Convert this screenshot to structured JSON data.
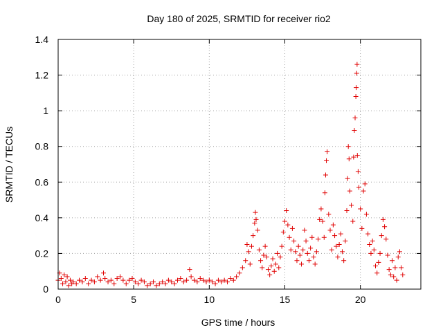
{
  "chart_data": {
    "type": "scatter",
    "title": "Day 180 of 2025, SRMTID for receiver rio2",
    "xlabel": "GPS time / hours",
    "ylabel": "SRMTID / TECUs",
    "xlim": [
      0,
      24
    ],
    "ylim": [
      0,
      1.4
    ],
    "xticks": [
      0,
      5,
      10,
      15,
      20
    ],
    "xtick_labels": [
      "0",
      "5",
      "10",
      "15",
      "20"
    ],
    "yticks": [
      0,
      0.2,
      0.4,
      0.6,
      0.8,
      1,
      1.2,
      1.4
    ],
    "ytick_labels": [
      "0",
      "0.2",
      "0.4",
      "0.6",
      "0.8",
      "1",
      "1.2",
      "1.4"
    ],
    "grid": true,
    "marker": "+",
    "series": [
      {
        "name": "SRMTID",
        "color": "#e00000",
        "points": [
          [
            0.0,
            0.05
          ],
          [
            0.1,
            0.09
          ],
          [
            0.2,
            0.06
          ],
          [
            0.3,
            0.03
          ],
          [
            0.4,
            0.08
          ],
          [
            0.5,
            0.04
          ],
          [
            0.6,
            0.07
          ],
          [
            0.7,
            0.02
          ],
          [
            0.8,
            0.05
          ],
          [
            0.9,
            0.03
          ],
          [
            1.0,
            0.04
          ],
          [
            1.2,
            0.03
          ],
          [
            1.4,
            0.05
          ],
          [
            1.6,
            0.04
          ],
          [
            1.8,
            0.06
          ],
          [
            2.0,
            0.03
          ],
          [
            2.2,
            0.05
          ],
          [
            2.4,
            0.04
          ],
          [
            2.6,
            0.07
          ],
          [
            2.8,
            0.05
          ],
          [
            3.0,
            0.09
          ],
          [
            3.1,
            0.06
          ],
          [
            3.3,
            0.04
          ],
          [
            3.5,
            0.05
          ],
          [
            3.7,
            0.03
          ],
          [
            3.9,
            0.06
          ],
          [
            4.1,
            0.07
          ],
          [
            4.3,
            0.05
          ],
          [
            4.5,
            0.03
          ],
          [
            4.7,
            0.05
          ],
          [
            4.9,
            0.06
          ],
          [
            5.1,
            0.04
          ],
          [
            5.3,
            0.03
          ],
          [
            5.5,
            0.05
          ],
          [
            5.7,
            0.04
          ],
          [
            5.9,
            0.02
          ],
          [
            6.1,
            0.03
          ],
          [
            6.3,
            0.04
          ],
          [
            6.5,
            0.02
          ],
          [
            6.7,
            0.03
          ],
          [
            6.9,
            0.04
          ],
          [
            7.1,
            0.03
          ],
          [
            7.3,
            0.05
          ],
          [
            7.5,
            0.04
          ],
          [
            7.7,
            0.03
          ],
          [
            7.9,
            0.05
          ],
          [
            8.1,
            0.06
          ],
          [
            8.3,
            0.04
          ],
          [
            8.5,
            0.05
          ],
          [
            8.7,
            0.11
          ],
          [
            8.8,
            0.07
          ],
          [
            9.0,
            0.05
          ],
          [
            9.2,
            0.04
          ],
          [
            9.4,
            0.06
          ],
          [
            9.6,
            0.05
          ],
          [
            9.8,
            0.04
          ],
          [
            10.0,
            0.05
          ],
          [
            10.2,
            0.04
          ],
          [
            10.4,
            0.03
          ],
          [
            10.6,
            0.05
          ],
          [
            10.8,
            0.04
          ],
          [
            11.0,
            0.05
          ],
          [
            11.2,
            0.04
          ],
          [
            11.4,
            0.06
          ],
          [
            11.6,
            0.05
          ],
          [
            11.8,
            0.07
          ],
          [
            12.0,
            0.09
          ],
          [
            12.2,
            0.12
          ],
          [
            12.4,
            0.16
          ],
          [
            12.5,
            0.25
          ],
          [
            12.6,
            0.21
          ],
          [
            12.7,
            0.14
          ],
          [
            12.8,
            0.24
          ],
          [
            12.9,
            0.3
          ],
          [
            13.0,
            0.37
          ],
          [
            13.05,
            0.43
          ],
          [
            13.1,
            0.39
          ],
          [
            13.2,
            0.33
          ],
          [
            13.3,
            0.22
          ],
          [
            13.4,
            0.16
          ],
          [
            13.5,
            0.12
          ],
          [
            13.6,
            0.19
          ],
          [
            13.7,
            0.24
          ],
          [
            13.8,
            0.18
          ],
          [
            13.9,
            0.11
          ],
          [
            14.0,
            0.08
          ],
          [
            14.1,
            0.13
          ],
          [
            14.2,
            0.17
          ],
          [
            14.3,
            0.1
          ],
          [
            14.4,
            0.14
          ],
          [
            14.5,
            0.2
          ],
          [
            14.6,
            0.12
          ],
          [
            14.7,
            0.18
          ],
          [
            14.8,
            0.24
          ],
          [
            14.9,
            0.32
          ],
          [
            15.0,
            0.38
          ],
          [
            15.1,
            0.44
          ],
          [
            15.2,
            0.36
          ],
          [
            15.3,
            0.29
          ],
          [
            15.4,
            0.22
          ],
          [
            15.5,
            0.34
          ],
          [
            15.6,
            0.27
          ],
          [
            15.7,
            0.21
          ],
          [
            15.8,
            0.16
          ],
          [
            15.9,
            0.24
          ],
          [
            16.0,
            0.19
          ],
          [
            16.1,
            0.14
          ],
          [
            16.2,
            0.22
          ],
          [
            16.3,
            0.33
          ],
          [
            16.4,
            0.27
          ],
          [
            16.5,
            0.2
          ],
          [
            16.6,
            0.16
          ],
          [
            16.7,
            0.23
          ],
          [
            16.8,
            0.29
          ],
          [
            16.9,
            0.18
          ],
          [
            17.0,
            0.14
          ],
          [
            17.1,
            0.21
          ],
          [
            17.2,
            0.28
          ],
          [
            17.3,
            0.39
          ],
          [
            17.4,
            0.45
          ],
          [
            17.5,
            0.38
          ],
          [
            17.6,
            0.29
          ],
          [
            17.65,
            0.54
          ],
          [
            17.7,
            0.64
          ],
          [
            17.75,
            0.72
          ],
          [
            17.8,
            0.77
          ],
          [
            17.9,
            0.42
          ],
          [
            18.0,
            0.33
          ],
          [
            18.1,
            0.22
          ],
          [
            18.2,
            0.36
          ],
          [
            18.3,
            0.3
          ],
          [
            18.4,
            0.24
          ],
          [
            18.5,
            0.18
          ],
          [
            18.6,
            0.25
          ],
          [
            18.7,
            0.31
          ],
          [
            18.8,
            0.21
          ],
          [
            18.9,
            0.16
          ],
          [
            19.0,
            0.27
          ],
          [
            19.1,
            0.44
          ],
          [
            19.15,
            0.62
          ],
          [
            19.2,
            0.8
          ],
          [
            19.25,
            0.73
          ],
          [
            19.3,
            0.55
          ],
          [
            19.4,
            0.47
          ],
          [
            19.5,
            0.38
          ],
          [
            19.55,
            0.74
          ],
          [
            19.6,
            0.89
          ],
          [
            19.65,
            0.96
          ],
          [
            19.7,
            1.08
          ],
          [
            19.72,
            1.13
          ],
          [
            19.75,
            1.21
          ],
          [
            19.78,
            1.26
          ],
          [
            19.8,
            0.75
          ],
          [
            19.85,
            0.66
          ],
          [
            19.9,
            0.57
          ],
          [
            20.0,
            0.45
          ],
          [
            20.1,
            0.34
          ],
          [
            20.2,
            0.55
          ],
          [
            20.3,
            0.59
          ],
          [
            20.4,
            0.42
          ],
          [
            20.5,
            0.31
          ],
          [
            20.6,
            0.25
          ],
          [
            20.7,
            0.2
          ],
          [
            20.8,
            0.27
          ],
          [
            20.9,
            0.22
          ],
          [
            21.0,
            0.13
          ],
          [
            21.1,
            0.09
          ],
          [
            21.2,
            0.15
          ],
          [
            21.3,
            0.2
          ],
          [
            21.4,
            0.3
          ],
          [
            21.5,
            0.39
          ],
          [
            21.6,
            0.35
          ],
          [
            21.7,
            0.28
          ],
          [
            21.8,
            0.19
          ],
          [
            21.9,
            0.11
          ],
          [
            22.0,
            0.08
          ],
          [
            22.1,
            0.16
          ],
          [
            22.2,
            0.07
          ],
          [
            22.3,
            0.12
          ],
          [
            22.4,
            0.05
          ],
          [
            22.5,
            0.18
          ],
          [
            22.6,
            0.21
          ],
          [
            22.7,
            0.12
          ],
          [
            22.8,
            0.08
          ]
        ]
      }
    ]
  }
}
